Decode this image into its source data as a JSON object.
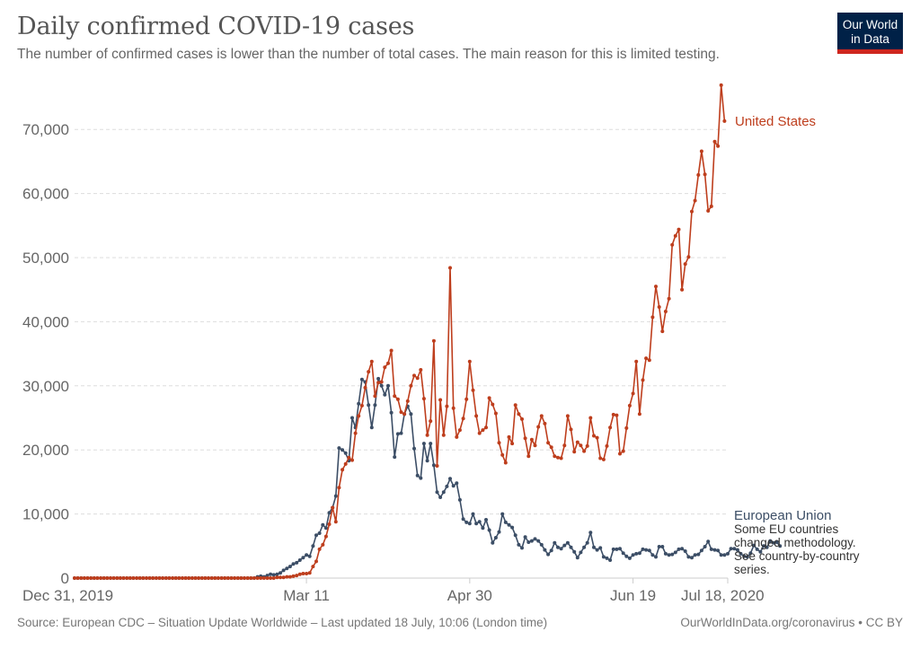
{
  "header": {
    "title": "Daily confirmed COVID-19 cases",
    "subtitle": "The number of confirmed cases is lower than the number of total cases. The main reason for this is limited testing.",
    "logo_line1": "Our World",
    "logo_line2": "in Data"
  },
  "footer": {
    "source": "Source: European CDC – Situation Update Worldwide – Last updated 18 July, 10:06 (London time)",
    "attribution": "OurWorldInData.org/coronavirus • CC BY"
  },
  "colors": {
    "us": "#be3e1d",
    "eu": "#3c4e66",
    "logo_bg": "#002147",
    "logo_bar": "#ce261e"
  },
  "chart_data": {
    "type": "line",
    "title": "Daily confirmed COVID-19 cases",
    "subtitle": "The number of confirmed cases is lower than the number of total cases. The main reason for this is limited testing.",
    "xlabel": "",
    "ylabel": "",
    "x_unit": "days since Dec 31, 2019",
    "xlim": [
      0,
      200
    ],
    "ylim": [
      0,
      77000
    ],
    "grid": true,
    "yticks": [
      0,
      10000,
      20000,
      30000,
      40000,
      50000,
      60000,
      70000
    ],
    "ytick_labels": [
      "0",
      "10,000",
      "20,000",
      "30,000",
      "40,000",
      "50,000",
      "60,000",
      "70,000"
    ],
    "xticks": [
      0,
      71,
      121,
      171,
      200
    ],
    "xtick_labels": [
      "Dec 31, 2019",
      "Mar 11",
      "Apr 30",
      "Jun 19",
      "Jul 18, 2020"
    ],
    "legend": "inline-right",
    "series": [
      {
        "name": "United States",
        "key": "us",
        "start_day": 0,
        "values": [
          0,
          0,
          0,
          0,
          0,
          0,
          0,
          0,
          0,
          0,
          0,
          0,
          0,
          0,
          0,
          0,
          0,
          0,
          0,
          0,
          0,
          0,
          0,
          0,
          0,
          0,
          0,
          0,
          0,
          0,
          0,
          0,
          0,
          0,
          0,
          0,
          0,
          0,
          0,
          0,
          0,
          0,
          0,
          0,
          0,
          0,
          0,
          0,
          0,
          0,
          0,
          0,
          0,
          0,
          0,
          0,
          0,
          0,
          0,
          0,
          0,
          0,
          100,
          100,
          100,
          200,
          200,
          300,
          400,
          600,
          700,
          700,
          800,
          1800,
          2600,
          4500,
          5200,
          6500,
          8400,
          11000,
          8800,
          14100,
          16900,
          17800,
          18800,
          18400,
          22600,
          25300,
          26900,
          29700,
          32200,
          33800,
          28400,
          30500,
          30600,
          32900,
          33500,
          35500,
          28400,
          27900,
          25900,
          25600,
          27600,
          30000,
          31600,
          31200,
          32500,
          28000,
          22300,
          24500,
          37000,
          17500,
          27800,
          22300,
          26800,
          48400,
          26500,
          22000,
          23100,
          24900,
          27900,
          33800,
          29300,
          25300,
          22600,
          23100,
          23500,
          28100,
          27100,
          25700,
          21100,
          19200,
          18000,
          22000,
          21000,
          27000,
          25600,
          24800,
          21800,
          19000,
          21600,
          20700,
          23600,
          25300,
          24100,
          21100,
          20400,
          19000,
          18800,
          18700,
          20700,
          25300,
          23200,
          19700,
          21200,
          20700,
          19800,
          20600,
          25000,
          22200,
          21900,
          18700,
          18500,
          20600,
          23500,
          25500,
          25400,
          19400,
          19800,
          23400,
          26900,
          28800,
          33800,
          25600,
          30900,
          34300,
          34000,
          40700,
          45500,
          42300,
          38500,
          41600,
          43600,
          52000,
          53400,
          54400,
          45000,
          49000,
          50100,
          57200,
          58900,
          62900,
          66600,
          63000,
          57300,
          58000,
          68100,
          67400,
          76900,
          71300
        ]
      },
      {
        "name": "European Union",
        "key": "eu",
        "note": "Some EU countries changed methodology. See country-by-country series.",
        "start_day": 0,
        "values": [
          0,
          0,
          0,
          0,
          0,
          0,
          0,
          0,
          0,
          0,
          0,
          0,
          0,
          0,
          0,
          0,
          0,
          0,
          0,
          0,
          0,
          0,
          0,
          0,
          0,
          0,
          0,
          0,
          0,
          0,
          0,
          0,
          0,
          0,
          0,
          0,
          0,
          0,
          0,
          0,
          0,
          0,
          0,
          0,
          0,
          0,
          0,
          0,
          0,
          0,
          0,
          0,
          0,
          0,
          0,
          0,
          200,
          300,
          200,
          400,
          600,
          500,
          600,
          800,
          1200,
          1500,
          1800,
          2200,
          2400,
          2800,
          3200,
          3600,
          3400,
          5000,
          6700,
          7000,
          8300,
          7800,
          10200,
          11000,
          12800,
          20300,
          20000,
          19500,
          18300,
          25000,
          23500,
          27200,
          31000,
          30600,
          27000,
          23500,
          27000,
          31100,
          30000,
          28600,
          30000,
          25800,
          18900,
          22500,
          22600,
          25600,
          26800,
          25600,
          20200,
          16000,
          15600,
          21000,
          18300,
          21000,
          17600,
          13400,
          12600,
          13400,
          14300,
          15500,
          14400,
          14800,
          12200,
          9200,
          8700,
          8500,
          10000,
          8500,
          8800,
          7800,
          9100,
          7500,
          5500,
          6300,
          7200,
          10000,
          8700,
          8300,
          7900,
          6700,
          5200,
          4700,
          6400,
          5600,
          5800,
          6100,
          5800,
          5200,
          4400,
          3700,
          4300,
          5500,
          4800,
          4600,
          5100,
          5500,
          4800,
          4100,
          3200,
          4000,
          4800,
          5500,
          7100,
          4800,
          4400,
          4700,
          3300,
          3100,
          2800,
          4500,
          4500,
          4600,
          3900,
          3400,
          3100,
          3600,
          3800,
          3900,
          4500,
          4400,
          4300,
          3600,
          3300,
          4900,
          4900,
          3800,
          3600,
          3700,
          4000,
          4500,
          4600,
          4200,
          3300,
          3200,
          3600,
          3700,
          4300,
          4900,
          5700,
          4500,
          4400,
          4300,
          3600,
          3600,
          3800,
          4600,
          4600,
          4400,
          3800,
          3400,
          3300,
          3900,
          5100,
          4500,
          4100,
          5000,
          4800,
          5800,
          5500,
          5600,
          5000
        ]
      }
    ]
  }
}
